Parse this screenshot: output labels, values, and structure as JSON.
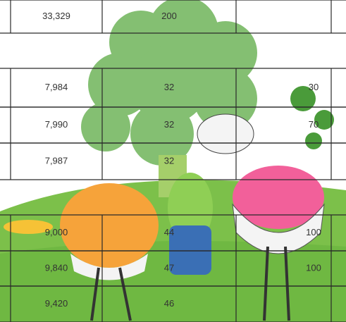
{
  "table": {
    "rows": [
      [
        "33,329",
        "200"
      ],
      [
        "7,984",
        "32",
        "30"
      ],
      [
        "7,990",
        "32",
        "70"
      ],
      [
        "7,987",
        "32"
      ],
      [
        "9,000",
        "44",
        "100"
      ],
      [
        "9,840",
        "47",
        "100"
      ],
      [
        "9,420",
        "46"
      ]
    ]
  }
}
